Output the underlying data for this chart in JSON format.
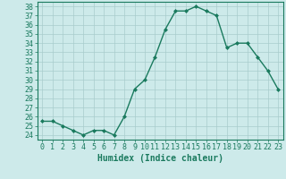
{
  "x": [
    0,
    1,
    2,
    3,
    4,
    5,
    6,
    7,
    8,
    9,
    10,
    11,
    12,
    13,
    14,
    15,
    16,
    17,
    18,
    19,
    20,
    21,
    22,
    23
  ],
  "y": [
    25.5,
    25.5,
    25.0,
    24.5,
    24.0,
    24.5,
    24.5,
    24.0,
    26.0,
    29.0,
    30.0,
    32.5,
    35.5,
    37.5,
    37.5,
    38.0,
    37.5,
    37.0,
    33.5,
    34.0,
    34.0,
    32.5,
    31.0,
    29.0
  ],
  "line_color": "#1a7a5e",
  "marker": "D",
  "markersize": 2,
  "linewidth": 1.0,
  "xlabel": "Humidex (Indice chaleur)",
  "xlim": [
    -0.5,
    23.5
  ],
  "ylim": [
    23.5,
    38.5
  ],
  "yticks": [
    24,
    25,
    26,
    27,
    28,
    29,
    30,
    31,
    32,
    33,
    34,
    35,
    36,
    37,
    38
  ],
  "xticks": [
    0,
    1,
    2,
    3,
    4,
    5,
    6,
    7,
    8,
    9,
    10,
    11,
    12,
    13,
    14,
    15,
    16,
    17,
    18,
    19,
    20,
    21,
    22,
    23
  ],
  "bg_color": "#cdeaea",
  "grid_color": "#a8cccc",
  "tick_color": "#1a7a5e",
  "label_color": "#1a7a5e",
  "axis_color": "#1a7a5e",
  "xlabel_fontsize": 7,
  "tick_fontsize": 6
}
